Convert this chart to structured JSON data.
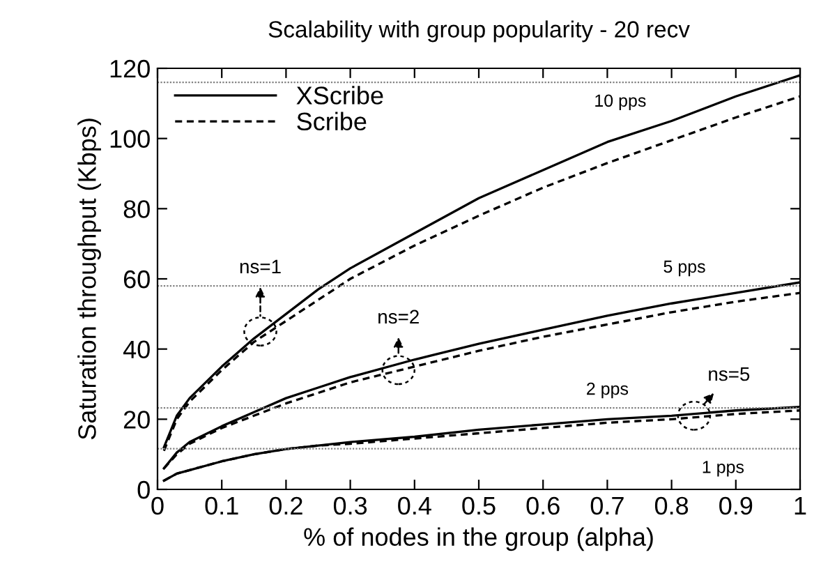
{
  "chart_data": {
    "type": "line",
    "title": "Scalability with group popularity - 20 recv",
    "xlabel": "% of nodes in the group (alpha)",
    "ylabel": "Saturation throughput (Kbps)",
    "xlim": [
      0,
      1
    ],
    "ylim": [
      0,
      120
    ],
    "xticks": [
      0,
      0.1,
      0.2,
      0.3,
      0.4,
      0.5,
      0.6,
      0.7,
      0.8,
      0.9,
      1
    ],
    "yticks": [
      0,
      20,
      40,
      60,
      80,
      100,
      120
    ],
    "x": [
      0.01,
      0.03,
      0.05,
      0.1,
      0.15,
      0.2,
      0.25,
      0.3,
      0.4,
      0.5,
      0.6,
      0.7,
      0.8,
      0.9,
      1
    ],
    "series": [
      {
        "name": "XScribe",
        "color": "#000000",
        "line_style": "solid",
        "values": [
          12,
          21,
          26,
          35,
          43,
          50,
          57,
          63,
          73,
          83,
          91,
          99,
          105,
          112,
          118
        ]
      },
      {
        "name": "Scribe",
        "color": "#000000",
        "line_style": "dashed",
        "values": [
          11,
          20,
          25,
          34,
          42,
          48,
          54,
          60,
          69.5,
          78,
          86,
          93,
          99.5,
          106,
          112
        ]
      },
      {
        "color": "#000000",
        "line_style": "solid",
        "values": [
          6,
          10.5,
          13.5,
          18,
          22,
          26,
          29,
          32,
          37,
          41.5,
          45.5,
          49.5,
          53,
          56,
          59
        ]
      },
      {
        "color": "#000000",
        "line_style": "dashed",
        "values": [
          6,
          10,
          13,
          17.5,
          21,
          24.5,
          27.5,
          30.5,
          35,
          39.5,
          43.5,
          47,
          50.5,
          53.5,
          56
        ]
      },
      {
        "color": "#000000",
        "line_style": "solid",
        "values": [
          2.5,
          4.5,
          5.5,
          8,
          10,
          11.5,
          12.5,
          13.5,
          15,
          17,
          18.5,
          20,
          21,
          22.5,
          23.5
        ]
      },
      {
        "color": "#000000",
        "line_style": "dashed",
        "values": [
          2.5,
          4.5,
          5.5,
          8,
          10,
          11.5,
          12.5,
          13,
          14.5,
          16,
          17.5,
          19,
          20,
          21.5,
          22.5
        ]
      }
    ],
    "ref_lines": [
      {
        "axis": "y",
        "value": 116,
        "label": "10 pps",
        "color": "#808080",
        "line_style": "dotted"
      },
      {
        "axis": "y",
        "value": 58,
        "label": "5 pps",
        "color": "#808080",
        "line_style": "dotted"
      },
      {
        "axis": "y",
        "value": 23.2,
        "label": "2 pps",
        "color": "#808080",
        "line_style": "dotted"
      },
      {
        "axis": "y",
        "value": 11.6,
        "label": "1 pps",
        "color": "#808080",
        "line_style": "dotted"
      }
    ],
    "annotations": [
      {
        "text": "ns=1",
        "x": 0.16,
        "y": 45
      },
      {
        "text": "ns=2",
        "x": 0.375,
        "y": 34
      },
      {
        "text": "ns=5",
        "x": 0.835,
        "y": 21
      }
    ],
    "legend": "top left",
    "grid": false,
    "marker": "none"
  }
}
